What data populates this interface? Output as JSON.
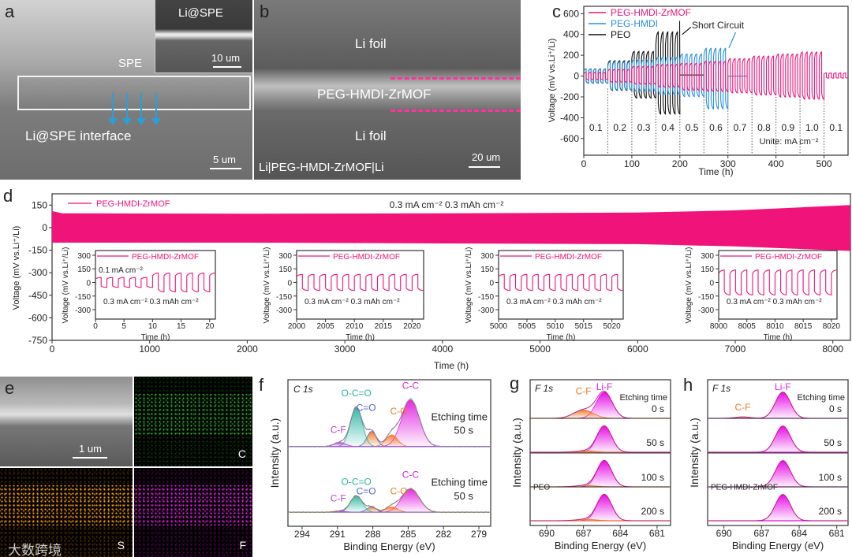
{
  "panel_labels": {
    "a": "a",
    "b": "b",
    "c": "c",
    "d": "d",
    "e": "e",
    "f": "f",
    "g": "g",
    "h": "h"
  },
  "panel_a": {
    "inset_label": "Li@SPE",
    "inset_scale": "10 um",
    "spe_label": "SPE",
    "interface_label": "Li@SPE interface",
    "scale": "5 um",
    "arrow_color": "#2a9fd8"
  },
  "panel_b": {
    "top_label": "Li foil",
    "middle_label": "PEG-HMDI-ZrMOF",
    "bottom_label": "Li foil",
    "caption": "Li|PEG-HMDI-ZrMOF|Li",
    "scale": "20 um",
    "dash_color": "#ff3399"
  },
  "panel_e": {
    "scale": "1 um",
    "maps": {
      "c": "C",
      "s": "S",
      "f": "F"
    },
    "watermark": "大数跨境"
  },
  "chart_data": [
    {
      "id": "c",
      "type": "line",
      "xlabel": "Time (h)",
      "ylabel": "Voltage (mV vs.Li⁺/Li)",
      "xlim": [
        0,
        550
      ],
      "ylim": [
        -760,
        670
      ],
      "xticks": [
        "0",
        "100",
        "200",
        "300",
        "400",
        "500"
      ],
      "xtick_values": [
        0,
        100,
        200,
        300,
        400,
        500
      ],
      "yticks": [
        "600",
        "400",
        "200",
        "0",
        "-200",
        "-400",
        "-600"
      ],
      "ytick_values": [
        600,
        400,
        200,
        0,
        -200,
        -400,
        -600
      ],
      "current_steps": {
        "labels": [
          "0.1",
          "0.2",
          "0.3",
          "0.4",
          "0.5",
          "0.6",
          "0.7",
          "0.8",
          "0.9",
          "1.0",
          "0.1"
        ],
        "boundaries_h": [
          0,
          50,
          100,
          150,
          200,
          250,
          300,
          350,
          400,
          450,
          500,
          550
        ]
      },
      "unit_note": "Unite: mA cm⁻²",
      "annotation": "Short Circuit",
      "series": [
        {
          "name": "PEO",
          "color": "#111111",
          "short_circuit_h": 200,
          "spike_mV": 530,
          "amplitude_mV": [
            [
              70,
              -70
            ],
            [
              150,
              -140
            ],
            [
              240,
              -215
            ],
            [
              430,
              -370
            ]
          ],
          "post_short_mV": 10,
          "post_short_until_h": 250
        },
        {
          "name": "PEG-HMDI",
          "color": "#2a8fe0",
          "short_circuit_h": 300,
          "amplitude_mV": [
            [
              70,
              -70
            ],
            [
              140,
              -135
            ],
            [
              160,
              -150
            ],
            [
              185,
              -180
            ],
            [
              215,
              -200
            ],
            [
              270,
              -320
            ]
          ],
          "post_short_mV": 0,
          "post_short_until_h": 340
        },
        {
          "name": "PEG-HMDI-ZrMOF",
          "color": "#e8157a",
          "amplitude_mV": [
            [
              35,
              -35
            ],
            [
              65,
              -60
            ],
            [
              95,
              -80
            ],
            [
              115,
              -110
            ],
            [
              125,
              -140
            ],
            [
              145,
              -150
            ],
            [
              170,
              -165
            ],
            [
              195,
              -185
            ],
            [
              215,
              -205
            ],
            [
              235,
              -225
            ],
            [
              30,
              -20
            ]
          ]
        }
      ]
    },
    {
      "id": "d",
      "type": "line",
      "xlabel": "Time (h)",
      "ylabel": "Voltage (mV vs.Li⁺/Li)",
      "xlim": [
        0,
        8180
      ],
      "ylim": [
        -750,
        225
      ],
      "xticks": [
        "0",
        "1000",
        "2000",
        "3000",
        "4000",
        "5000",
        "6000",
        "7000",
        "8000"
      ],
      "xtick_values": [
        0,
        1000,
        2000,
        3000,
        4000,
        5000,
        6000,
        7000,
        8000
      ],
      "yticks": [
        "150",
        "0",
        "-150",
        "-300",
        "-450",
        "-600",
        "-750"
      ],
      "ytick_values": [
        150,
        0,
        -150,
        -300,
        -450,
        -600,
        -750
      ],
      "legend": "PEG-HMDI-ZrMOF",
      "color": "#f0147a",
      "condition": "0.3 mA cm⁻²   0.3 mAh cm⁻²",
      "band_upper": [
        [
          0,
          110
        ],
        [
          100,
          95
        ],
        [
          2000,
          93
        ],
        [
          4000,
          95
        ],
        [
          6000,
          100
        ],
        [
          7000,
          115
        ],
        [
          8180,
          150
        ]
      ],
      "band_lower": [
        [
          0,
          -100
        ],
        [
          2000,
          -100
        ],
        [
          4000,
          -105
        ],
        [
          6000,
          -110
        ],
        [
          7000,
          -125
        ],
        [
          8180,
          -155
        ]
      ],
      "insets": [
        {
          "xlim": [
            0,
            21
          ],
          "xticks": [
            "0",
            "5",
            "10",
            "15",
            "20"
          ],
          "xtick_values": [
            0,
            5,
            10,
            15,
            20
          ],
          "segments": [
            {
              "from": 0,
              "to": 10,
              "amp": 55
            },
            {
              "from": 10,
              "to": 21,
              "amp": 105
            }
          ],
          "note_top": "0.1 mA cm⁻²",
          "note": "0.3 mA cm⁻²  0.3 mAh cm⁻²"
        },
        {
          "xlim": [
            2000,
            2022
          ],
          "xticks": [
            "2000",
            "2005",
            "2010",
            "2015",
            "2020"
          ],
          "xtick_values": [
            2000,
            2005,
            2010,
            2015,
            2020
          ],
          "segments": [
            {
              "from": 2000,
              "to": 2022,
              "amp": 90
            }
          ],
          "note": "0.3 mA cm⁻²  0.3 mAh cm⁻²"
        },
        {
          "xlim": [
            5000,
            5022
          ],
          "xticks": [
            "5000",
            "5005",
            "5010",
            "5015",
            "5020"
          ],
          "xtick_values": [
            5000,
            5005,
            5010,
            5015,
            5020
          ],
          "segments": [
            {
              "from": 5000,
              "to": 5022,
              "amp": 90
            }
          ],
          "note": "0.3 mA cm⁻²  0.3 mAh cm⁻²"
        },
        {
          "xlim": [
            8000,
            8021
          ],
          "xticks": [
            "8000",
            "8005",
            "8010",
            "8015",
            "8020"
          ],
          "xtick_values": [
            8000,
            8005,
            8010,
            8015,
            8020
          ],
          "segments": [
            {
              "from": 8000,
              "to": 8021,
              "amp": 140
            }
          ],
          "note": "0.3 mA cm⁻²  0.3 mAh cm⁻²"
        }
      ],
      "inset_common": {
        "ylim": [
          -404,
          352
        ],
        "yticks": [
          "300",
          "150",
          "0",
          "-150",
          "-300"
        ],
        "ytick_values": [
          300,
          150,
          0,
          -150,
          -300
        ],
        "xlabel": "Time (h)",
        "ylabel": "Voltage (mV vs.Li⁺/Li)",
        "legend": "PEG-HMDI-ZrMOF",
        "period_h": 2
      }
    },
    {
      "id": "f",
      "type": "area",
      "title": "C 1s",
      "xlabel": "Binding Energy (eV)",
      "ylabel": "Intensity (a.u.)",
      "xlim": [
        295.2,
        278
      ],
      "ylim": [
        0,
        2.5
      ],
      "xticks": [
        "294",
        "291",
        "288",
        "285",
        "282",
        "279"
      ],
      "xtick_values": [
        294,
        291,
        288,
        285,
        282,
        279
      ],
      "spectra": [
        {
          "label": "Etching time",
          "time": "50 s",
          "baseline": 1.36,
          "line_color": "#4a90e0",
          "peaks": [
            {
              "name": "C-C",
              "center": 284.8,
              "height": 0.8,
              "sigma": 0.75,
              "color": "#e020e0"
            },
            {
              "name": "C-O",
              "center": 286.4,
              "height": 0.2,
              "sigma": 0.5,
              "color": "#f07820"
            },
            {
              "name": "C=O",
              "center": 288.1,
              "height": 0.26,
              "sigma": 0.4,
              "color": "#5060e0"
            },
            {
              "name": "O-C=O",
              "center": 289.4,
              "height": 0.67,
              "sigma": 0.5,
              "color": "#2bb5a0"
            },
            {
              "name": "C-F",
              "center": 290.8,
              "height": 0.07,
              "sigma": 0.5,
              "color": "#c040e0"
            }
          ]
        },
        {
          "label": "Etching time",
          "time": "50 s",
          "baseline": 0.24,
          "line_color": "#40a080",
          "peaks": [
            {
              "name": "C-C",
              "center": 284.8,
              "height": 0.4,
              "sigma": 0.75,
              "color": "#e020e0"
            },
            {
              "name": "C-O",
              "center": 286.4,
              "height": 0.09,
              "sigma": 0.5,
              "color": "#f07820"
            },
            {
              "name": "C=O",
              "center": 288.1,
              "height": 0.09,
              "sigma": 0.4,
              "color": "#5060e0"
            },
            {
              "name": "O-C=O",
              "center": 289.4,
              "height": 0.28,
              "sigma": 0.5,
              "color": "#2bb5a0"
            },
            {
              "name": "C-F",
              "center": 290.8,
              "height": 0.02,
              "sigma": 0.5,
              "color": "#c040e0"
            }
          ]
        }
      ]
    },
    {
      "id": "g",
      "type": "area",
      "title": "F 1s",
      "xlabel": "Binding Energy (eV)",
      "ylabel": "Intensity (a.u.)",
      "sample": "PEO",
      "xlim": [
        691.35,
        679.9
      ],
      "ylim": [
        0,
        4
      ],
      "xticks": [
        "690",
        "687",
        "684",
        "681"
      ],
      "xtick_values": [
        690,
        687,
        684,
        681
      ],
      "header": "Etching time",
      "peak_labels": {
        "lif": "Li-F",
        "cf": "C-F"
      },
      "baseline_color": "#f07820",
      "spectra": [
        {
          "time": "0 s",
          "baseline": 2.94,
          "peaks": [
            {
              "name": "Li-F",
              "center": 685.3,
              "height": 0.72,
              "sigma": 0.65,
              "color": "#e600e6"
            },
            {
              "name": "C-F",
              "center": 687.0,
              "height": 0.23,
              "sigma": 0.8,
              "color": "#f07820"
            }
          ]
        },
        {
          "time": "50 s",
          "baseline": 2.01,
          "peaks": [
            {
              "name": "Li-F",
              "center": 685.3,
              "height": 0.72,
              "sigma": 0.6,
              "color": "#e600e6"
            },
            {
              "name": "C-F",
              "center": 686.8,
              "height": 0.04,
              "sigma": 0.8,
              "color": "#f07820"
            }
          ]
        },
        {
          "time": "100 s",
          "baseline": 1.06,
          "peaks": [
            {
              "name": "Li-F",
              "center": 685.3,
              "height": 0.72,
              "sigma": 0.6,
              "color": "#e600e6"
            },
            {
              "name": "C-F",
              "center": 686.8,
              "height": 0.04,
              "sigma": 0.8,
              "color": "#f07820"
            }
          ]
        },
        {
          "time": "200 s",
          "baseline": 0.13,
          "peaks": [
            {
              "name": "Li-F",
              "center": 685.3,
              "height": 0.72,
              "sigma": 0.6,
              "color": "#e600e6"
            },
            {
              "name": "C-F",
              "center": 686.8,
              "height": 0.04,
              "sigma": 0.8,
              "color": "#f07820"
            }
          ]
        }
      ]
    },
    {
      "id": "h",
      "type": "area",
      "title": "F 1s",
      "xlabel": "Binding Energy (eV)",
      "ylabel": "Intensity (a.u.)",
      "sample": "PEG-HMDI-ZrMOF",
      "xlim": [
        691.3,
        680.1
      ],
      "ylim": [
        0,
        4
      ],
      "xticks": [
        "690",
        "687",
        "684",
        "681"
      ],
      "xtick_values": [
        690,
        687,
        684,
        681
      ],
      "header": "Etching time",
      "peak_labels": {
        "lif": "Li-F",
        "cf": "C-F"
      },
      "baseline_color": "#e020e0",
      "spectra": [
        {
          "time": "0 s",
          "baseline": 2.94,
          "peaks": [
            {
              "name": "Li-F",
              "center": 685.3,
              "height": 0.72,
              "sigma": 0.6,
              "color": "#e600e6"
            },
            {
              "name": "C-F",
              "center": 688.5,
              "height": 0.04,
              "sigma": 0.6,
              "color": "#f07820"
            }
          ]
        },
        {
          "time": "50 s",
          "baseline": 2.01,
          "peaks": [
            {
              "name": "Li-F",
              "center": 685.3,
              "height": 0.72,
              "sigma": 0.6,
              "color": "#e600e6"
            }
          ]
        },
        {
          "time": "100 s",
          "baseline": 1.06,
          "peaks": [
            {
              "name": "Li-F",
              "center": 685.3,
              "height": 0.72,
              "sigma": 0.6,
              "color": "#e600e6"
            }
          ]
        },
        {
          "time": "200 s",
          "baseline": 0.13,
          "peaks": [
            {
              "name": "Li-F",
              "center": 685.3,
              "height": 0.72,
              "sigma": 0.6,
              "color": "#e600e6"
            }
          ]
        }
      ]
    }
  ]
}
